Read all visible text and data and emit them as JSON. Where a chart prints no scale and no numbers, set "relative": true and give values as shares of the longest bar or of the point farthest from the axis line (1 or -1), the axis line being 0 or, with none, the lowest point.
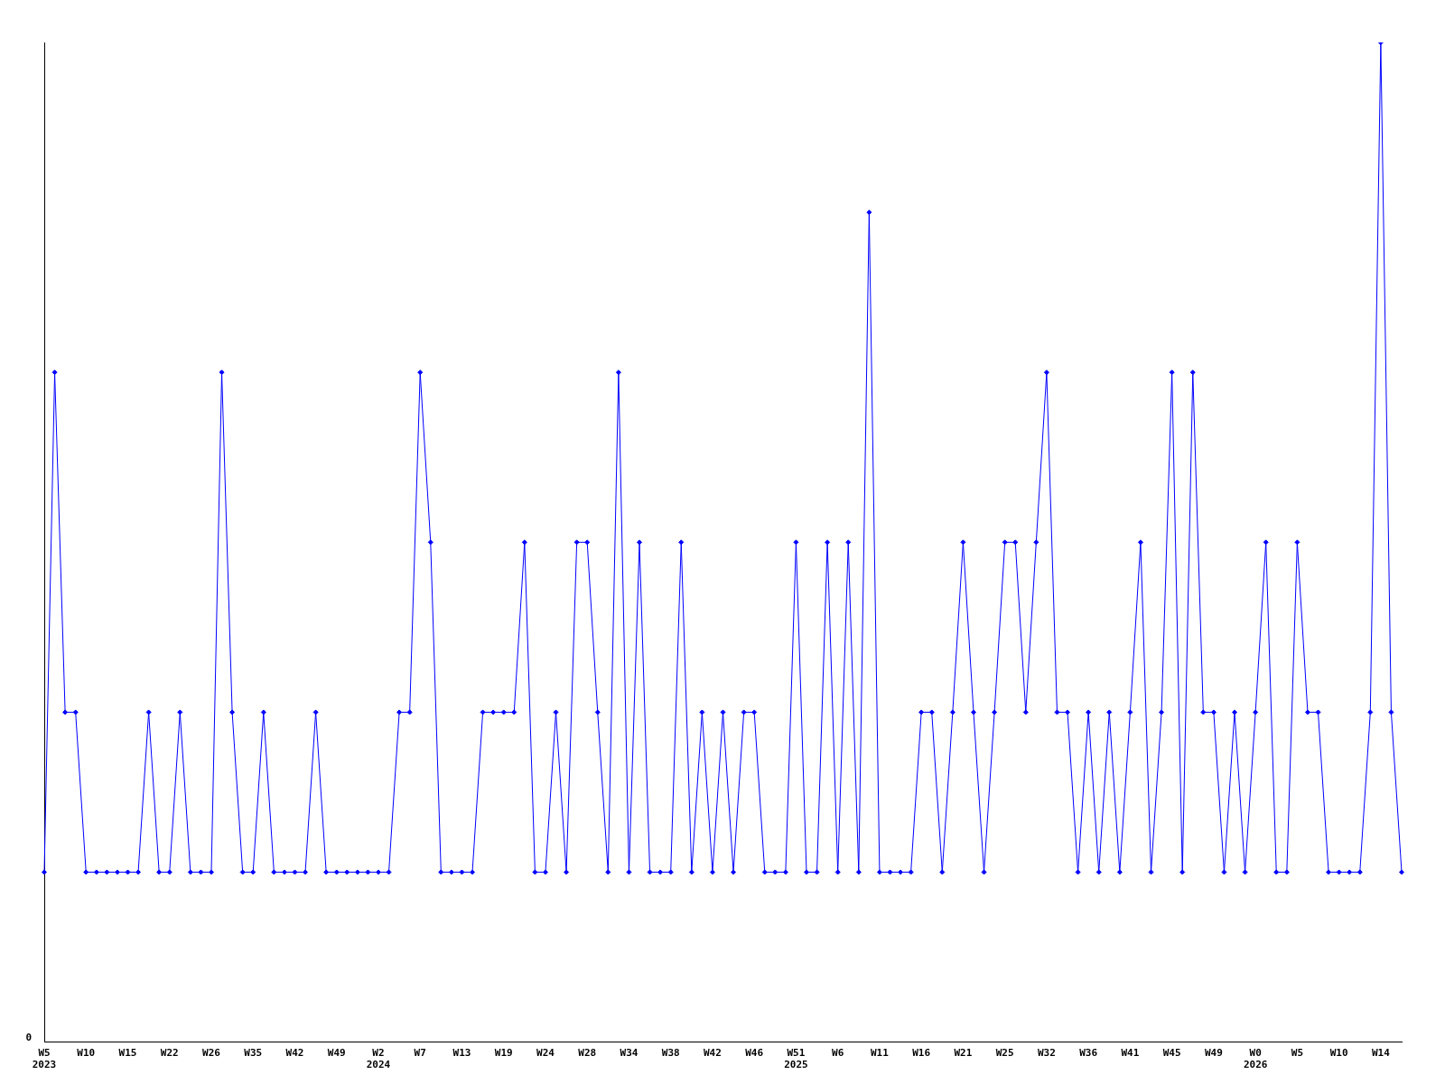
{
  "chart_data": {
    "type": "line",
    "relative": true,
    "annotations": [
      "0"
    ],
    "marker": "diamond",
    "line_style": "solid",
    "color": "#0000ff",
    "categories": [
      "W5\n2023",
      null,
      null,
      null,
      "W10",
      null,
      null,
      null,
      "W15",
      null,
      null,
      null,
      "W22",
      null,
      null,
      null,
      "W26",
      null,
      null,
      null,
      "W35",
      null,
      null,
      null,
      "W42",
      null,
      null,
      null,
      "W49",
      null,
      null,
      null,
      "W2\n2024",
      null,
      null,
      null,
      "W7",
      null,
      null,
      null,
      "W13",
      null,
      null,
      null,
      "W19",
      null,
      null,
      null,
      "W24",
      null,
      null,
      null,
      "W28",
      null,
      null,
      null,
      "W34",
      null,
      null,
      null,
      "W38",
      null,
      null,
      null,
      "W42",
      null,
      null,
      null,
      "W46",
      null,
      null,
      null,
      "W51\n2025",
      null,
      null,
      null,
      "W6",
      null,
      null,
      null,
      "W11",
      null,
      null,
      null,
      "W16",
      null,
      null,
      null,
      "W21",
      null,
      null,
      null,
      "W25",
      null,
      null,
      null,
      "W32",
      null,
      null,
      null,
      "W36",
      null,
      null,
      null,
      "W41",
      null,
      null,
      null,
      "W45",
      null,
      null,
      null,
      "W49",
      null,
      null,
      null,
      "W0\n2026",
      null,
      null,
      null,
      "W5",
      null,
      null,
      null,
      "W10",
      null,
      null,
      null,
      "W14",
      null,
      null
    ],
    "values": [
      0.17,
      0.67,
      0.33,
      0.33,
      0.17,
      0.17,
      0.17,
      0.17,
      0.17,
      0.17,
      0.33,
      0.17,
      0.17,
      0.33,
      0.17,
      0.17,
      0.17,
      0.67,
      0.33,
      0.17,
      0.17,
      0.33,
      0.17,
      0.17,
      0.17,
      0.17,
      0.33,
      0.17,
      0.17,
      0.17,
      0.17,
      0.17,
      0.17,
      0.17,
      0.33,
      0.33,
      0.67,
      0.5,
      0.17,
      0.17,
      0.17,
      0.17,
      0.33,
      0.33,
      0.33,
      0.33,
      0.5,
      0.17,
      0.17,
      0.33,
      0.17,
      0.5,
      0.5,
      0.33,
      0.17,
      0.67,
      0.17,
      0.5,
      0.17,
      0.17,
      0.17,
      0.5,
      0.17,
      0.33,
      0.17,
      0.33,
      0.17,
      0.33,
      0.33,
      0.17,
      0.17,
      0.17,
      0.5,
      0.17,
      0.17,
      0.5,
      0.17,
      0.5,
      0.17,
      0.83,
      0.17,
      0.17,
      0.17,
      0.17,
      0.33,
      0.33,
      0.17,
      0.33,
      0.5,
      0.33,
      0.17,
      0.33,
      0.5,
      0.5,
      0.33,
      0.5,
      0.67,
      0.33,
      0.33,
      0.17,
      0.33,
      0.17,
      0.33,
      0.17,
      0.33,
      0.5,
      0.17,
      0.33,
      0.67,
      0.17,
      0.67,
      0.33,
      0.33,
      0.17,
      0.33,
      0.17,
      0.33,
      0.5,
      0.17,
      0.17,
      0.5,
      0.33,
      0.33,
      0.17,
      0.17,
      0.17,
      0.17,
      0.33,
      1,
      0.33,
      0.17
    ]
  }
}
